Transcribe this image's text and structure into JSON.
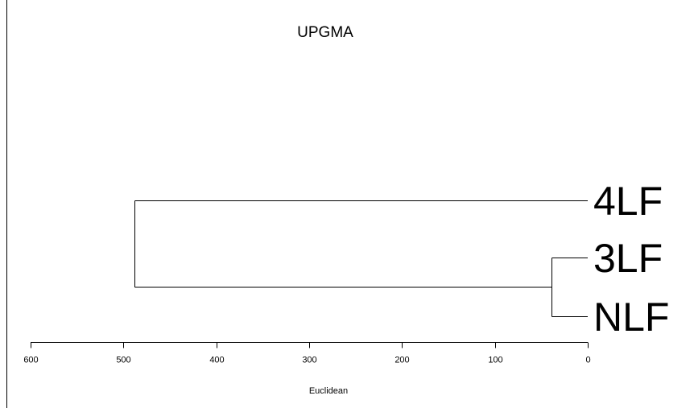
{
  "title": "UPGMA",
  "axis": {
    "label": "Euclidean",
    "min": 0,
    "max": 600,
    "ticks": [
      600,
      500,
      400,
      300,
      200,
      100,
      0
    ],
    "reversed": true
  },
  "leaves": [
    "4LF",
    "3LF",
    "NLF"
  ],
  "chart_data": {
    "type": "dendrogram",
    "title": "UPGMA",
    "xlabel": "Euclidean",
    "xlim": [
      600,
      0
    ],
    "leaves": [
      "4LF",
      "3LF",
      "NLF"
    ],
    "merges": [
      {
        "left": "3LF",
        "right": "NLF",
        "height": 39
      },
      {
        "left": "4LF",
        "right": "3LF+NLF",
        "height": 488
      }
    ]
  }
}
